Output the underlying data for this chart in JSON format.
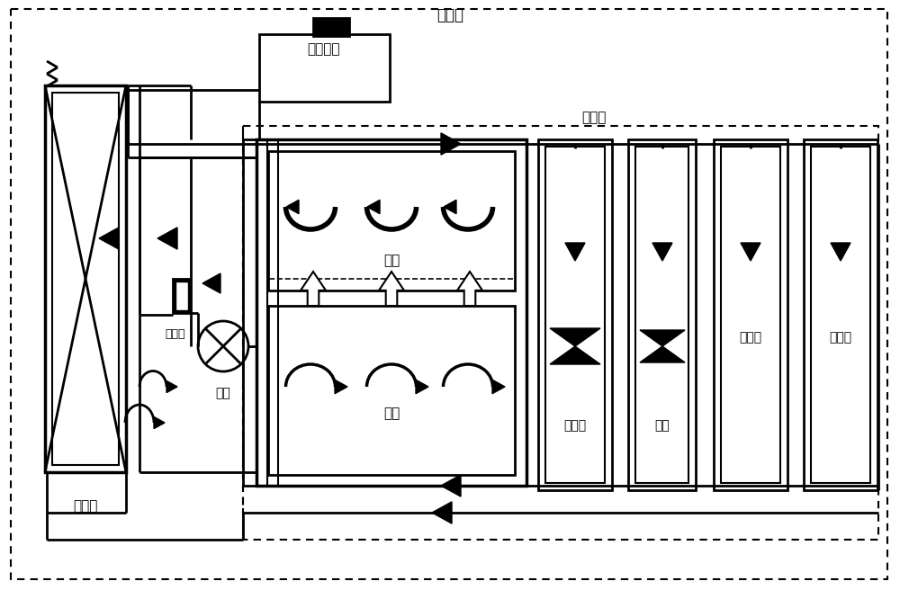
{
  "bg_color": "#ffffff",
  "labels": {
    "da_xunhuan": "大循环",
    "xiao_xunhuan": "小循环",
    "san_re_qi": "散热器",
    "jie_wen_qi": "节温器",
    "shui_beng": "水泵",
    "peng_zhang": "膨胀水壶",
    "gang_gai": "缸盖",
    "gang_ti": "缸体",
    "you_leng_qi": "油冷器",
    "nuan_feng": "暖风",
    "zeng_ya_qi": "增压器",
    "qi_jie_men": "气节门"
  }
}
